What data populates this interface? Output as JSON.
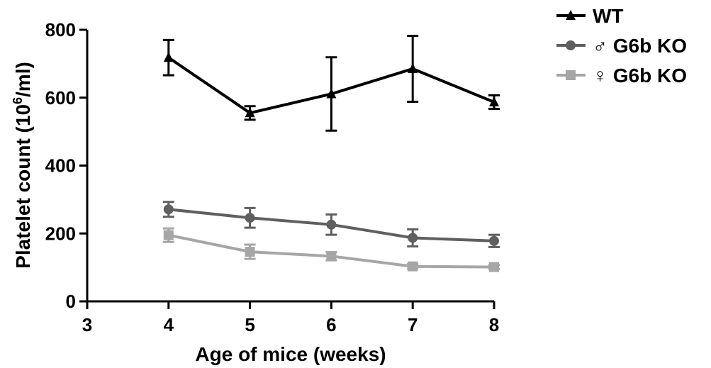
{
  "chart_data": {
    "type": "line",
    "title": "",
    "xlabel": "Age of mice (weeks)",
    "ylabel_main": "Platelet count (10",
    "ylabel_sup": "6",
    "ylabel_end": "/ml)",
    "xlim": [
      3,
      8
    ],
    "ylim": [
      0,
      800
    ],
    "xticks": [
      3,
      4,
      5,
      6,
      7,
      8
    ],
    "yticks": [
      0,
      200,
      400,
      600,
      800
    ],
    "grid": false,
    "legend_position": "top-right",
    "x": [
      4,
      5,
      6,
      7,
      8
    ],
    "series": [
      {
        "name": "WT",
        "color": "#000000",
        "marker": "triangle",
        "values": [
          718,
          555,
          611,
          685,
          587
        ],
        "err": [
          52,
          20,
          108,
          97,
          20
        ]
      },
      {
        "name": "♂ G6b KO",
        "color": "#5f5f5f",
        "marker": "circle",
        "values": [
          271,
          246,
          226,
          187,
          178
        ],
        "err": [
          22,
          29,
          30,
          25,
          18
        ]
      },
      {
        "name": "♀ G6b KO",
        "color": "#a6a6a6",
        "marker": "square",
        "values": [
          195,
          146,
          133,
          103,
          101
        ],
        "err": [
          20,
          21,
          12,
          7,
          6
        ]
      }
    ]
  }
}
